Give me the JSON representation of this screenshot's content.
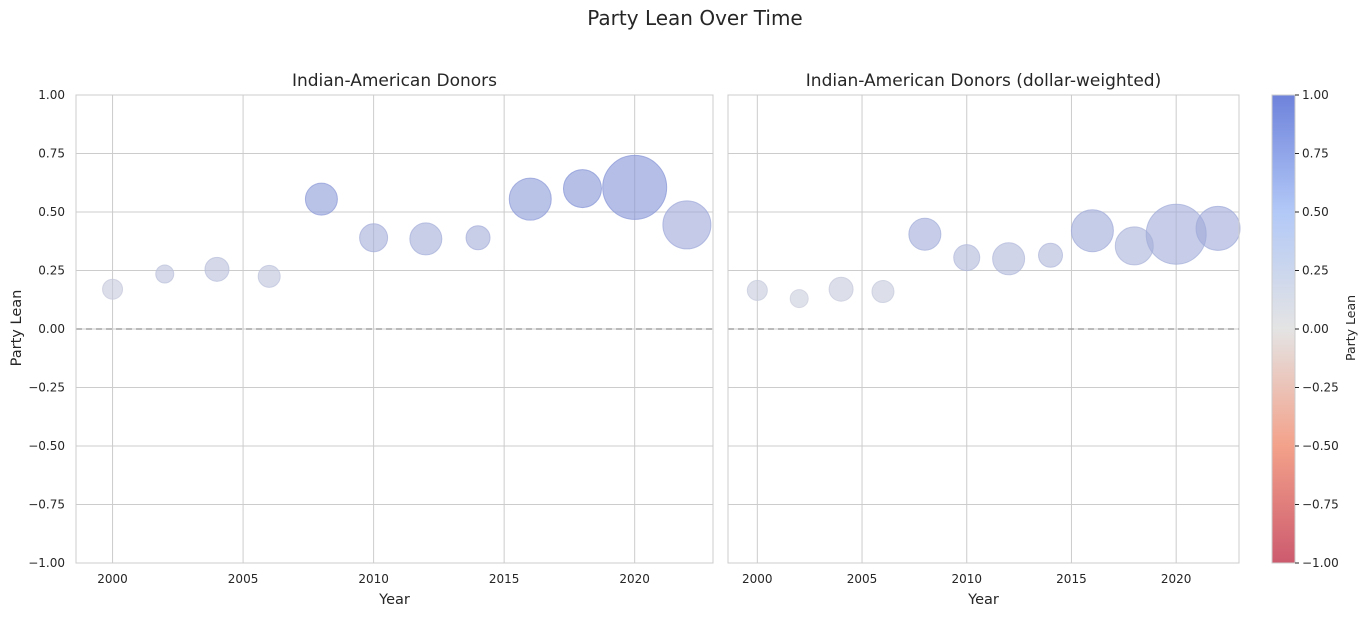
{
  "figure": {
    "title": "Party Lean Over Time"
  },
  "colorbar": {
    "label": "Party Lean",
    "range": [
      -1,
      1
    ],
    "ticks": [
      1.0,
      0.75,
      0.5,
      0.25,
      0.0,
      -0.25,
      -0.5,
      -0.75,
      -1.0
    ],
    "tick_labels": [
      "1.00",
      "0.75",
      "0.50",
      "0.25",
      "0.00",
      "−0.25",
      "−0.50",
      "−0.75",
      "−1.00"
    ],
    "colormap": "coolwarm_r",
    "colors": {
      "low": "#c0314a",
      "mid": "#dddddd",
      "high": "#4a63d2"
    }
  },
  "chart_data": [
    {
      "type": "scatter",
      "title": "Indian-American Donors",
      "xlabel": "Year",
      "ylabel": "Party Lean",
      "xlim": [
        1998.6,
        2023.0
      ],
      "ylim": [
        -1,
        1
      ],
      "xticks": [
        2000,
        2005,
        2010,
        2015,
        2020
      ],
      "xtick_labels": [
        "2000",
        "2005",
        "2010",
        "2015",
        "2020"
      ],
      "yticks": [
        1.0,
        0.75,
        0.5,
        0.25,
        0.0,
        -0.25,
        -0.5,
        -0.75,
        -1.0
      ],
      "ytick_labels": [
        "1.00",
        "0.75",
        "0.50",
        "0.25",
        "0.00",
        "−0.25",
        "−0.50",
        "−0.75",
        "−1.00"
      ],
      "grid": true,
      "reference_line": {
        "y": 0,
        "style": "dashed"
      },
      "points": [
        {
          "x": 2000,
          "y": 0.17,
          "size": 10
        },
        {
          "x": 2002,
          "y": 0.235,
          "size": 9
        },
        {
          "x": 2004,
          "y": 0.255,
          "size": 12
        },
        {
          "x": 2006,
          "y": 0.225,
          "size": 11
        },
        {
          "x": 2008,
          "y": 0.555,
          "size": 16
        },
        {
          "x": 2010,
          "y": 0.39,
          "size": 14
        },
        {
          "x": 2012,
          "y": 0.385,
          "size": 16
        },
        {
          "x": 2014,
          "y": 0.39,
          "size": 12
        },
        {
          "x": 2016,
          "y": 0.555,
          "size": 21
        },
        {
          "x": 2018,
          "y": 0.6,
          "size": 19
        },
        {
          "x": 2020,
          "y": 0.605,
          "size": 32
        },
        {
          "x": 2022,
          "y": 0.445,
          "size": 24
        }
      ]
    },
    {
      "type": "scatter",
      "title": "Indian-American Donors (dollar-weighted)",
      "xlabel": "Year",
      "ylabel": "",
      "xlim": [
        1998.6,
        2023.0
      ],
      "ylim": [
        -1,
        1
      ],
      "xticks": [
        2000,
        2005,
        2010,
        2015,
        2020
      ],
      "xtick_labels": [
        "2000",
        "2005",
        "2010",
        "2015",
        "2020"
      ],
      "grid": true,
      "reference_line": {
        "y": 0,
        "style": "dashed"
      },
      "points": [
        {
          "x": 2000,
          "y": 0.165,
          "size": 10
        },
        {
          "x": 2002,
          "y": 0.13,
          "size": 9
        },
        {
          "x": 2004,
          "y": 0.17,
          "size": 12
        },
        {
          "x": 2006,
          "y": 0.16,
          "size": 11
        },
        {
          "x": 2008,
          "y": 0.405,
          "size": 16
        },
        {
          "x": 2010,
          "y": 0.305,
          "size": 13
        },
        {
          "x": 2012,
          "y": 0.3,
          "size": 16
        },
        {
          "x": 2014,
          "y": 0.315,
          "size": 12
        },
        {
          "x": 2016,
          "y": 0.42,
          "size": 21
        },
        {
          "x": 2018,
          "y": 0.355,
          "size": 19
        },
        {
          "x": 2020,
          "y": 0.405,
          "size": 30
        },
        {
          "x": 2022,
          "y": 0.43,
          "size": 22
        }
      ]
    }
  ]
}
